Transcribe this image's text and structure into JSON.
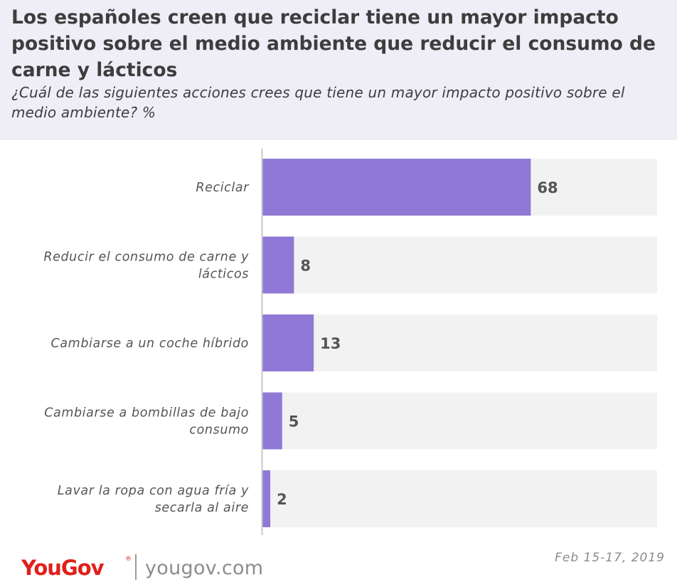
{
  "header": {
    "title": "Los españoles creen que reciclar tiene un mayor impacto positivo sobre el medio ambiente que reducir el consumo de carne y lácticos",
    "subtitle": "¿Cuál de las siguientes acciones crees que tiene un mayor impacto positivo sobre el medio ambiente? %"
  },
  "chart_data": {
    "type": "bar",
    "orientation": "horizontal",
    "title": "Los españoles creen que reciclar tiene un mayor impacto positivo sobre el medio ambiente que reducir el consumo de carne y lácticos",
    "subtitle": "¿Cuál de las siguientes acciones crees que tiene un mayor impacto positivo sobre el medio ambiente? %",
    "categories": [
      [
        "Reciclar"
      ],
      [
        "Reducir el consumo de carne y",
        "lácticos"
      ],
      [
        "Cambiarse a un coche híbrido"
      ],
      [
        "Cambiarse a bombillas de bajo",
        "consumo"
      ],
      [
        "Lavar la ropa con agua fría y",
        "secarla al aire"
      ]
    ],
    "values": [
      68,
      8,
      13,
      5,
      2
    ],
    "xlim": [
      0,
      100
    ],
    "grid": false,
    "bar_color": "#9079d6",
    "track_color": "#f2f2f2"
  },
  "footer": {
    "brand": "YouGov",
    "url": "yougov.com",
    "date": "Feb 15-17, 2019",
    "brand_color": "#e0201b"
  }
}
